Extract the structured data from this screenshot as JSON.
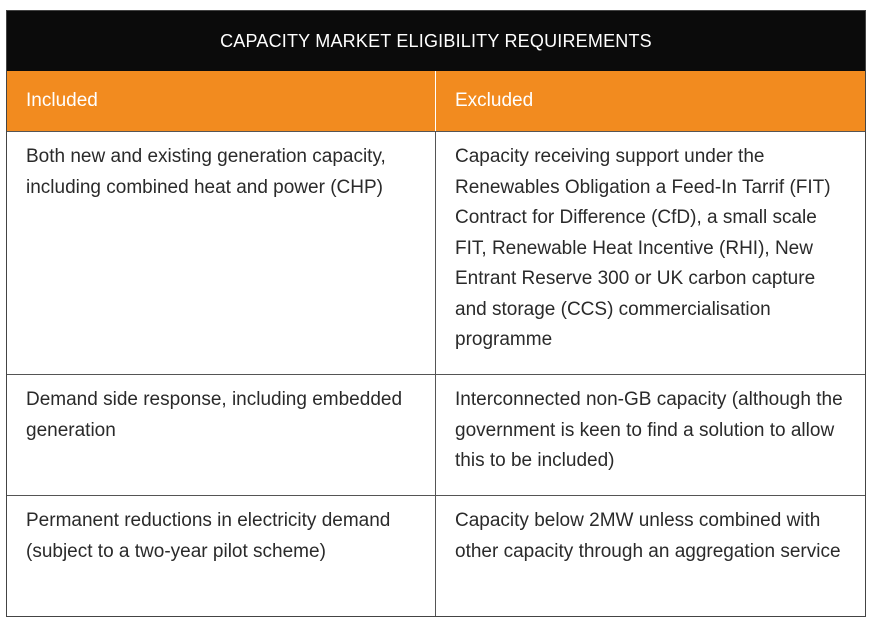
{
  "title": "CAPACITY MARKET ELIGIBILITY REQUIREMENTS",
  "colors": {
    "title_bg": "#0b0b0b",
    "header_bg": "#f28b1f",
    "header_text": "#ffffff",
    "body_text": "#2a2a2a"
  },
  "headers": {
    "included": "Included",
    "excluded": "Excluded"
  },
  "rows": [
    {
      "included": "Both new and existing generation capacity, including combined heat and power (CHP)",
      "excluded": "Capacity receiving support under the Renewables Obligation a Feed-In Tarrif (FIT) Contract for Difference (CfD), a small scale FIT, Renewable Heat Incentive (RHI), New Entrant Reserve 300 or UK carbon capture and storage (CCS) commercialisation programme"
    },
    {
      "included": "Demand side response, including embedded generation",
      "excluded": "Interconnected non-GB capacity (although the government is keen to find a solution to allow this to be included)"
    },
    {
      "included": "Permanent reductions in electricity demand (subject to a two-year pilot scheme)",
      "excluded": "Capacity below 2MW unless combined with other capacity through an aggregation service"
    }
  ]
}
